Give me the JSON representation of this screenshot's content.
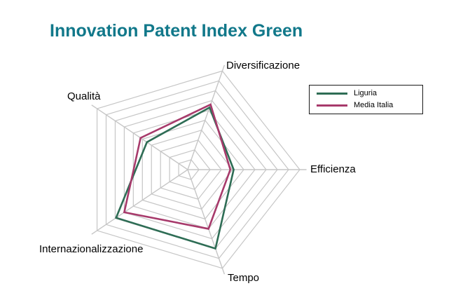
{
  "page": {
    "title": "Innovation Patent Index Green"
  },
  "colors": {
    "title": "#11788A",
    "grid": "#C6C6C6",
    "background": "#FFFFFF",
    "axis_label": "#000000",
    "legend_border": "#1A1A1A"
  },
  "chart_data": {
    "type": "radar",
    "title": "Innovation Patent Index Green",
    "axes": [
      "Diversificazione",
      "Efficienza",
      "Tempo",
      "Internazionalizzazione",
      "Qualità"
    ],
    "rings": 10,
    "r_max": 1.0,
    "grid": true,
    "legend_position": "top-right",
    "series": [
      {
        "name": "Liguria",
        "color": "#2E6D55",
        "values": [
          0.63,
          0.41,
          0.8,
          0.79,
          0.45
        ]
      },
      {
        "name": "Media Italia",
        "color": "#A73A6B",
        "values": [
          0.66,
          0.38,
          0.6,
          0.7,
          0.52
        ]
      }
    ]
  }
}
